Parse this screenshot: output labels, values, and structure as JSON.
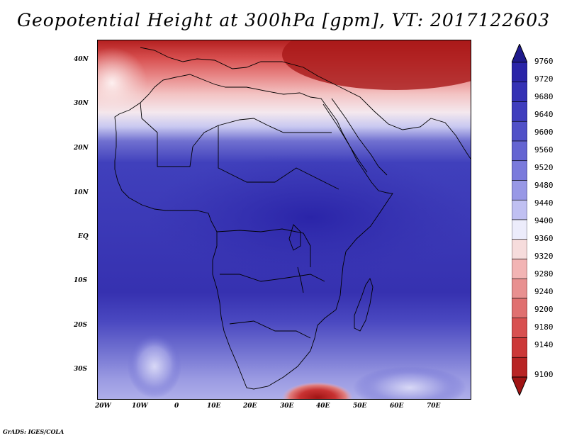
{
  "title": "Geopotential Height at 300hPa [gpm], VT: 2017122603",
  "credit": "GrADS: IGES/COLA",
  "lat_labels": [
    "40N",
    "30N",
    "20N",
    "10N",
    "EQ",
    "10S",
    "20S",
    "30S"
  ],
  "lon_labels": [
    "20W",
    "10W",
    "0",
    "10E",
    "20E",
    "30E",
    "40E",
    "50E",
    "60E",
    "70E"
  ],
  "colorbar": {
    "levels": [
      "9760",
      "9720",
      "9680",
      "9640",
      "9600",
      "9560",
      "9520",
      "9480",
      "9440",
      "9400",
      "9360",
      "9320",
      "9280",
      "9240",
      "9200",
      "9180",
      "9140",
      "9100"
    ],
    "colors": [
      "#1f1a8c",
      "#2a24a8",
      "#3431b5",
      "#3f3dbe",
      "#5050c8",
      "#6464d2",
      "#7a7adc",
      "#9898e6",
      "#c0c0f2",
      "#ececfb",
      "#f6dcdc",
      "#f2b4b4",
      "#e89090",
      "#e07070",
      "#d85050",
      "#cc3838",
      "#b82424",
      "#a01414"
    ]
  }
}
